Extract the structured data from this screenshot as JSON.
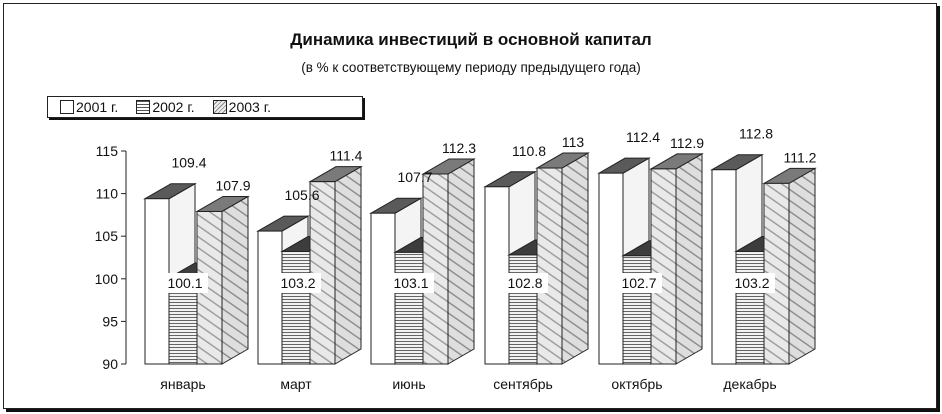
{
  "chart_data": {
    "type": "bar",
    "title": "Динамика инвестиций в основной капитал",
    "subtitle": "(в % к соответствующему периоду предыдущего года)",
    "categories": [
      "январь",
      "март",
      "июнь",
      "сентябрь",
      "октябрь",
      "декабрь"
    ],
    "series": [
      {
        "name": "2001 г.",
        "values": [
          109.4,
          105.6,
          107.7,
          110.8,
          112.4,
          112.8
        ]
      },
      {
        "name": "2002 г.",
        "values": [
          100.1,
          103.2,
          103.1,
          102.8,
          102.7,
          103.2
        ]
      },
      {
        "name": "2003 г.",
        "values": [
          107.9,
          111.4,
          112.3,
          113,
          112.9,
          111.2
        ]
      }
    ],
    "data_labels": {
      "2001 г.": [
        "109.4",
        "105.6",
        "107.7",
        "110.8",
        "112.4",
        "112.8"
      ],
      "2002 г.": [
        "100.1",
        "103.2",
        "103.1",
        "102.8",
        "102.7",
        "103.2"
      ],
      "2003 г.": [
        "107.9",
        "111.4",
        "112.3",
        "113",
        "112.9",
        "111.2"
      ]
    },
    "yticks": [
      "90",
      "95",
      "100",
      "105",
      "110",
      "115"
    ],
    "ylim": [
      90,
      115
    ],
    "legend_position": "top-left",
    "style": "3d-clustered-bar",
    "colors": {
      "2001": "#ffffff",
      "2002_front": "#d8d8d8",
      "2002_top": "#444444",
      "2003": "#e6e6e6"
    }
  }
}
